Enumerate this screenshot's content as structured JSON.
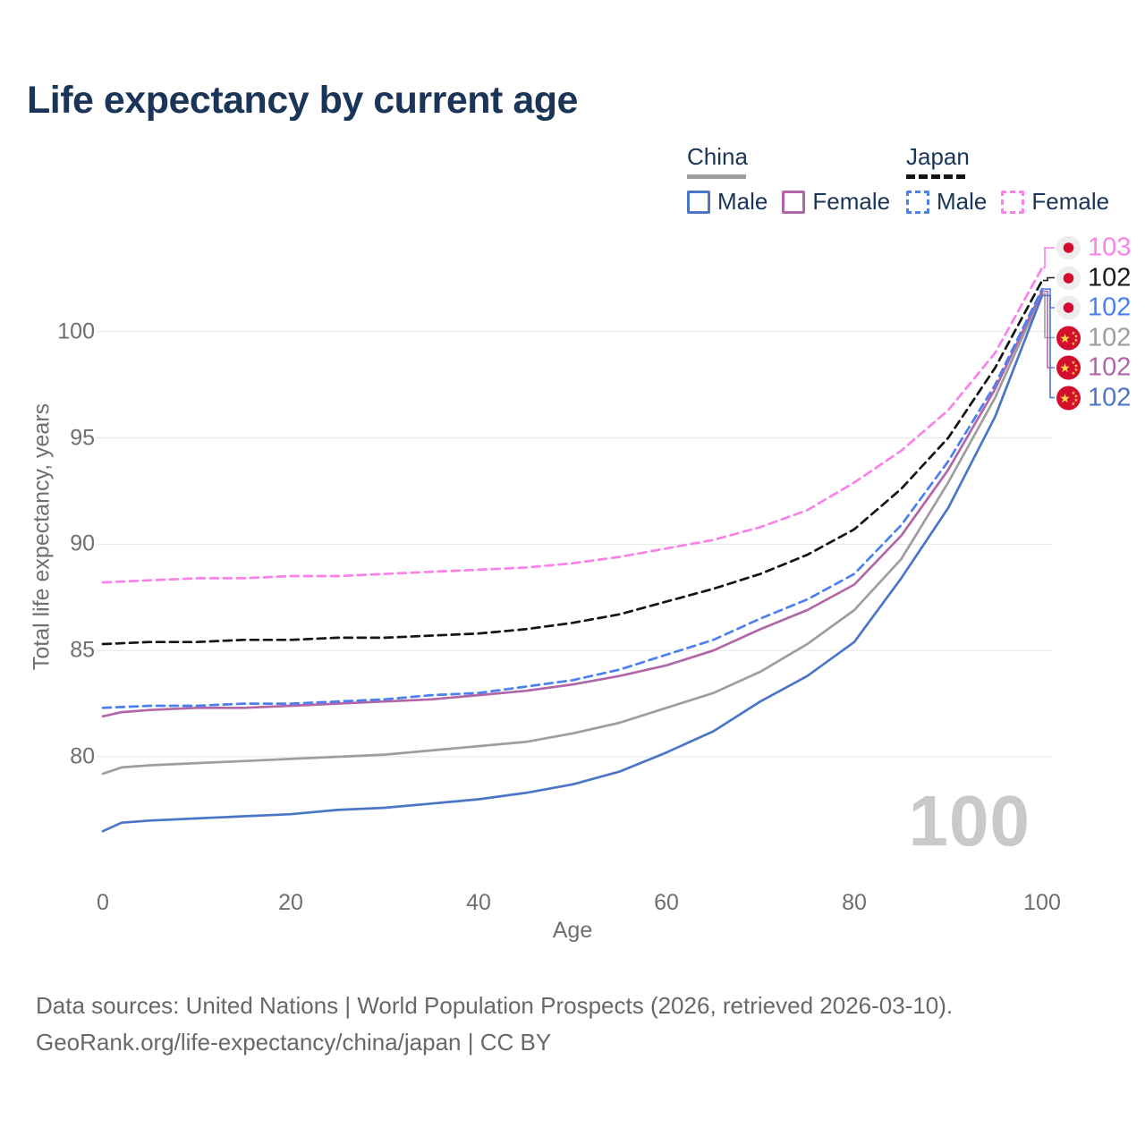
{
  "header": {
    "title": "Life expectancy by current age"
  },
  "legend": {
    "china": {
      "label": "China",
      "male": "Male",
      "female": "Female"
    },
    "japan": {
      "label": "Japan",
      "male": "Male",
      "female": "Female"
    }
  },
  "axes": {
    "y_title": "Total life expectancy, years",
    "x_title": "Age",
    "y_ticks": [
      80,
      85,
      90,
      95,
      100
    ],
    "x_ticks": [
      0,
      20,
      40,
      60,
      80,
      100
    ]
  },
  "watermark": "100",
  "endpoint_labels": [
    {
      "series_id": "japan_female",
      "flag": "japan",
      "value": "103",
      "color": "#fb81ea"
    },
    {
      "series_id": "japan_both",
      "flag": "japan",
      "value": "102",
      "color": "#1a1a1a"
    },
    {
      "series_id": "japan_male",
      "flag": "japan",
      "value": "102",
      "color": "#4a80f0"
    },
    {
      "series_id": "china_both",
      "flag": "china",
      "value": "102",
      "color": "#9e9e9e"
    },
    {
      "series_id": "china_female",
      "flag": "china",
      "value": "102",
      "color": "#b266a8"
    },
    {
      "series_id": "china_male",
      "flag": "china",
      "value": "102",
      "color": "#4b76c8"
    }
  ],
  "footer": {
    "line1": "Data sources: United Nations | World Population Prospects (2026, retrieved 2026-03-10).",
    "line2": "GeoRank.org/life-expectancy/china/japan | CC BY"
  },
  "chart_data": {
    "type": "line",
    "title": "Life expectancy by current age",
    "xlabel": "Age",
    "ylabel": "Total life expectancy, years",
    "xlim": [
      0,
      100
    ],
    "ylim_shown": [
      76,
      103.5
    ],
    "grid": "horizontal",
    "legend_position": "top-right",
    "x_units": "years of age",
    "y_units": "years",
    "series": [
      {
        "id": "china_both",
        "name": "China Both sexes",
        "country": "China",
        "sex": "both",
        "color": "#9e9e9e",
        "dashed": false,
        "end_label": "102",
        "points": [
          [
            0,
            79.2
          ],
          [
            2,
            79.5
          ],
          [
            5,
            79.6
          ],
          [
            10,
            79.7
          ],
          [
            15,
            79.8
          ],
          [
            20,
            79.9
          ],
          [
            25,
            80.0
          ],
          [
            30,
            80.1
          ],
          [
            35,
            80.3
          ],
          [
            40,
            80.5
          ],
          [
            45,
            80.7
          ],
          [
            50,
            81.1
          ],
          [
            55,
            81.6
          ],
          [
            60,
            82.3
          ],
          [
            65,
            83.0
          ],
          [
            70,
            84.0
          ],
          [
            75,
            85.3
          ],
          [
            80,
            86.9
          ],
          [
            85,
            89.3
          ],
          [
            90,
            92.9
          ],
          [
            95,
            96.9
          ],
          [
            100,
            101.8
          ]
        ]
      },
      {
        "id": "china_male",
        "name": "China Male",
        "country": "China",
        "sex": "male",
        "color": "#4b76c8",
        "dashed": false,
        "end_label": "102",
        "points": [
          [
            0,
            76.5
          ],
          [
            2,
            76.9
          ],
          [
            5,
            77.0
          ],
          [
            10,
            77.1
          ],
          [
            15,
            77.2
          ],
          [
            20,
            77.3
          ],
          [
            25,
            77.5
          ],
          [
            30,
            77.6
          ],
          [
            35,
            77.8
          ],
          [
            40,
            78.0
          ],
          [
            45,
            78.3
          ],
          [
            50,
            78.7
          ],
          [
            55,
            79.3
          ],
          [
            60,
            80.2
          ],
          [
            65,
            81.2
          ],
          [
            70,
            82.6
          ],
          [
            75,
            83.8
          ],
          [
            80,
            85.4
          ],
          [
            85,
            88.4
          ],
          [
            90,
            91.7
          ],
          [
            95,
            96.0
          ],
          [
            100,
            101.7
          ]
        ]
      },
      {
        "id": "china_female",
        "name": "China Female",
        "country": "China",
        "sex": "female",
        "color": "#b266a8",
        "dashed": false,
        "end_label": "102",
        "points": [
          [
            0,
            81.9
          ],
          [
            2,
            82.1
          ],
          [
            5,
            82.2
          ],
          [
            10,
            82.3
          ],
          [
            15,
            82.3
          ],
          [
            20,
            82.4
          ],
          [
            25,
            82.5
          ],
          [
            30,
            82.6
          ],
          [
            35,
            82.7
          ],
          [
            40,
            82.9
          ],
          [
            45,
            83.1
          ],
          [
            50,
            83.4
          ],
          [
            55,
            83.8
          ],
          [
            60,
            84.3
          ],
          [
            65,
            85.0
          ],
          [
            70,
            86.0
          ],
          [
            75,
            86.9
          ],
          [
            80,
            88.1
          ],
          [
            85,
            90.4
          ],
          [
            90,
            93.5
          ],
          [
            95,
            97.3
          ],
          [
            100,
            101.9
          ]
        ]
      },
      {
        "id": "japan_male",
        "name": "Japan Male",
        "country": "Japan",
        "sex": "male",
        "color": "#4a80f0",
        "dashed": true,
        "end_label": "102",
        "points": [
          [
            0,
            82.3
          ],
          [
            5,
            82.4
          ],
          [
            10,
            82.4
          ],
          [
            15,
            82.5
          ],
          [
            20,
            82.5
          ],
          [
            25,
            82.6
          ],
          [
            30,
            82.7
          ],
          [
            35,
            82.9
          ],
          [
            40,
            83.0
          ],
          [
            45,
            83.3
          ],
          [
            50,
            83.6
          ],
          [
            55,
            84.1
          ],
          [
            60,
            84.8
          ],
          [
            65,
            85.5
          ],
          [
            70,
            86.5
          ],
          [
            75,
            87.4
          ],
          [
            80,
            88.6
          ],
          [
            85,
            90.9
          ],
          [
            90,
            93.9
          ],
          [
            95,
            97.5
          ],
          [
            100,
            102.0
          ]
        ]
      },
      {
        "id": "japan_both",
        "name": "Japan Both sexes",
        "country": "Japan",
        "sex": "both",
        "color": "#141414",
        "dashed": true,
        "end_label": "102",
        "points": [
          [
            0,
            85.3
          ],
          [
            5,
            85.4
          ],
          [
            10,
            85.4
          ],
          [
            15,
            85.5
          ],
          [
            20,
            85.5
          ],
          [
            25,
            85.6
          ],
          [
            30,
            85.6
          ],
          [
            35,
            85.7
          ],
          [
            40,
            85.8
          ],
          [
            45,
            86.0
          ],
          [
            50,
            86.3
          ],
          [
            55,
            86.7
          ],
          [
            60,
            87.3
          ],
          [
            65,
            87.9
          ],
          [
            70,
            88.6
          ],
          [
            75,
            89.5
          ],
          [
            80,
            90.7
          ],
          [
            85,
            92.6
          ],
          [
            90,
            95.0
          ],
          [
            95,
            98.3
          ],
          [
            100,
            102.4
          ]
        ]
      },
      {
        "id": "japan_female",
        "name": "Japan Female",
        "country": "Japan",
        "sex": "female",
        "color": "#fb81ea",
        "dashed": true,
        "end_label": "103",
        "points": [
          [
            0,
            88.2
          ],
          [
            5,
            88.3
          ],
          [
            10,
            88.4
          ],
          [
            15,
            88.4
          ],
          [
            20,
            88.5
          ],
          [
            25,
            88.5
          ],
          [
            30,
            88.6
          ],
          [
            35,
            88.7
          ],
          [
            40,
            88.8
          ],
          [
            45,
            88.9
          ],
          [
            50,
            89.1
          ],
          [
            55,
            89.4
          ],
          [
            60,
            89.8
          ],
          [
            65,
            90.2
          ],
          [
            70,
            90.8
          ],
          [
            75,
            91.6
          ],
          [
            80,
            92.9
          ],
          [
            85,
            94.4
          ],
          [
            90,
            96.3
          ],
          [
            95,
            99.0
          ],
          [
            100,
            103.0
          ]
        ]
      }
    ]
  }
}
